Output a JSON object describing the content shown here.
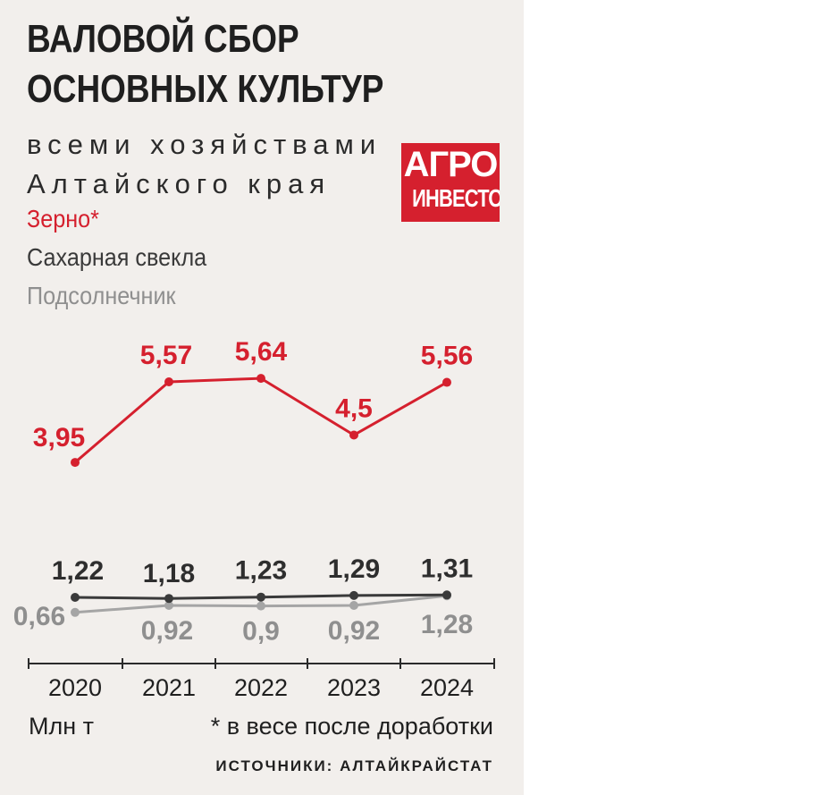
{
  "header": {
    "title_line1": "ВАЛОВОЙ СБОР",
    "title_line2": "ОСНОВНЫХ КУЛЬТУР",
    "subtitle_line1": "всеми хозяйствами",
    "subtitle_line2": "Алтайского края"
  },
  "logo": {
    "line1": "АГРО",
    "line2": "ИНВЕСТОР"
  },
  "legend": [
    {
      "label": "Зерно*",
      "color": "#d5202e"
    },
    {
      "label": "Сахарная свекла",
      "color": "#3a3a3a"
    },
    {
      "label": "Подсолнечник",
      "color": "#8f8f8f"
    }
  ],
  "chart_data": {
    "type": "line",
    "x": [
      "2020",
      "2021",
      "2022",
      "2023",
      "2024"
    ],
    "series": [
      {
        "name": "Зерно*",
        "color": "#d5202e",
        "values": [
          3.95,
          5.57,
          5.64,
          4.5,
          5.56
        ],
        "labels": [
          "3,95",
          "5,57",
          "5,64",
          "4,5",
          "5,56"
        ]
      },
      {
        "name": "Сахарная свекла",
        "color": "#3a3a3a",
        "values": [
          1.22,
          1.18,
          1.23,
          1.29,
          1.31
        ],
        "labels": [
          "1,22",
          "1,18",
          "1,23",
          "1,29",
          "1,31"
        ]
      },
      {
        "name": "Подсолнечник",
        "color": "#a5a5a5",
        "values": [
          0.66,
          0.92,
          0.9,
          0.92,
          1.28
        ],
        "labels": [
          "0,66",
          "0,92",
          "0,9",
          "0,92",
          "1,28"
        ]
      }
    ],
    "unit_label": "Млн т",
    "grid": false
  },
  "footer": {
    "unit": "Млн т",
    "note": "* в весе после доработки",
    "source": "ИСТОЧНИКИ: АЛТАЙКРАЙСТАТ"
  }
}
